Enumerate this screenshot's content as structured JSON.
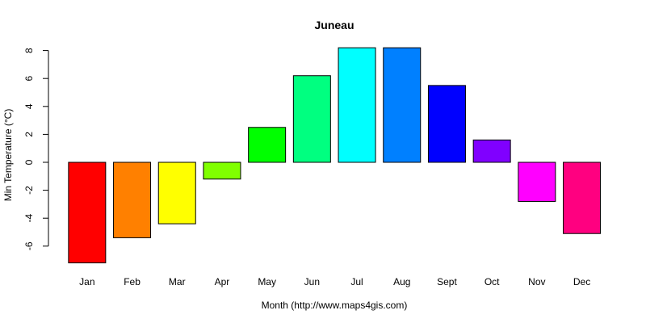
{
  "chart_data": {
    "type": "bar",
    "title": "Juneau",
    "xlabel": "Month (http://www.maps4gis.com)",
    "ylabel": "Min Temperature (°C)",
    "ylim": [
      -8,
      8
    ],
    "yticks": [
      "-6",
      "-4",
      "-2",
      "0",
      "2",
      "4",
      "6",
      "8"
    ],
    "categories": [
      "Jan",
      "Feb",
      "Mar",
      "Apr",
      "May",
      "Jun",
      "Jul",
      "Aug",
      "Sept",
      "Oct",
      "Nov",
      "Dec"
    ],
    "values": [
      -7.2,
      -5.4,
      -4.4,
      -1.2,
      2.5,
      6.2,
      8.2,
      8.2,
      5.5,
      1.6,
      -2.8,
      -5.1
    ],
    "colors": [
      "#FF0000",
      "#FF8000",
      "#FFFF00",
      "#80FF00",
      "#00FF00",
      "#00FF80",
      "#00FFFF",
      "#0080FF",
      "#0000FF",
      "#8000FF",
      "#FF00FF",
      "#FF0080"
    ],
    "grid": false,
    "legend": "none"
  }
}
